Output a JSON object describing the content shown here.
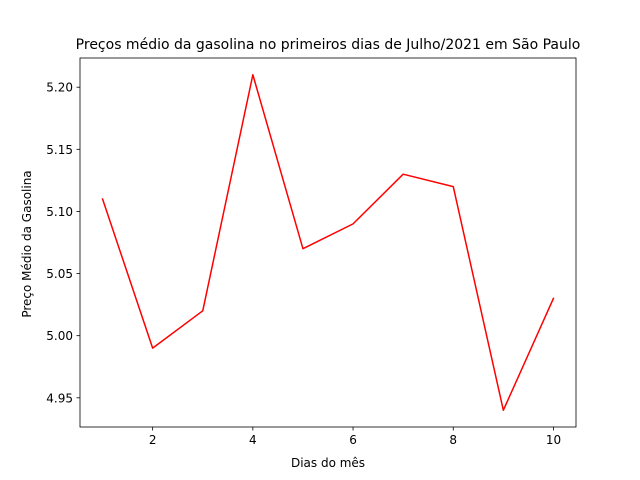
{
  "chart_data": {
    "type": "line",
    "title": "Preços médio da gasolina no primeiros dias de Julho/2021 em São Paulo",
    "xlabel": "Dias do mês",
    "ylabel": "Preço Médio da Gasolina",
    "x": [
      1,
      2,
      3,
      4,
      5,
      6,
      7,
      8,
      9,
      10
    ],
    "series": [
      {
        "values": [
          5.11,
          4.99,
          5.02,
          5.21,
          5.07,
          5.09,
          5.13,
          5.12,
          4.94,
          5.03
        ],
        "color": "#ff0000"
      }
    ],
    "xlim": [
      0.55,
      10.45
    ],
    "ylim": [
      4.9265,
      5.2235
    ],
    "xticks": [
      2,
      4,
      6,
      8,
      10
    ],
    "xtick_labels": [
      "2",
      "4",
      "6",
      "8",
      "10"
    ],
    "yticks": [
      4.95,
      5.0,
      5.05,
      5.1,
      5.15,
      5.2
    ],
    "ytick_labels": [
      "4.95",
      "5.00",
      "5.05",
      "5.10",
      "5.15",
      "5.20"
    ],
    "grid": false,
    "legend": "none"
  }
}
